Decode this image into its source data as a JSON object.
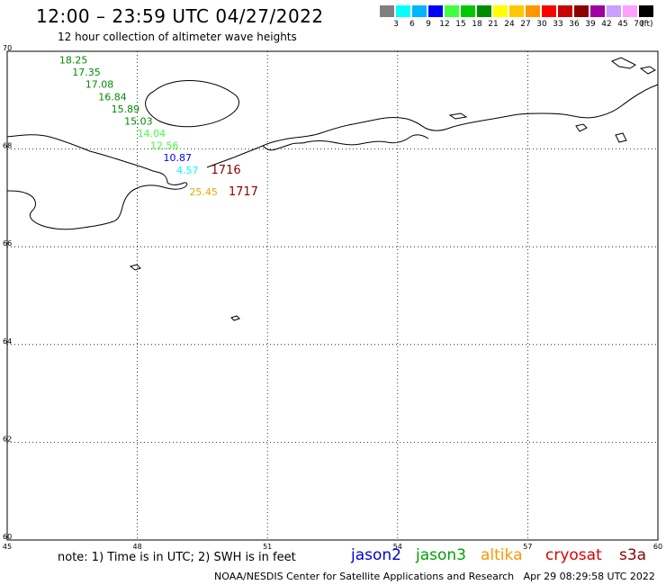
{
  "header": {
    "title": "12:00 – 23:59 UTC 04/27/2022",
    "subtitle": "12 hour collection of altimeter wave heights"
  },
  "colorbar": {
    "swatches": [
      "#808080",
      "#00ffff",
      "#00b4ff",
      "#0000ff",
      "#40ff40",
      "#00c800",
      "#008c00",
      "#ffff00",
      "#ffc800",
      "#ff9600",
      "#ff0000",
      "#c80000",
      "#8c0000",
      "#a000a0",
      "#c8a0ff",
      "#ffa0ff",
      "#000000"
    ],
    "labels": [
      "3",
      "6",
      "9",
      "12",
      "15",
      "18",
      "21",
      "24",
      "27",
      "30",
      "33",
      "36",
      "39",
      "42",
      "45",
      "70"
    ],
    "unit": "(ft)"
  },
  "map": {
    "lat_labels": [
      "70",
      "68",
      "66",
      "64",
      "62",
      "60"
    ],
    "lon_labels": [
      "45",
      "48",
      "51",
      "54",
      "57",
      "60"
    ],
    "points": [
      {
        "lon": 46.2,
        "lat": 69.75,
        "text": "18.25",
        "color": "#008c00"
      },
      {
        "lon": 46.5,
        "lat": 69.5,
        "text": "17.35",
        "color": "#008c00"
      },
      {
        "lon": 46.8,
        "lat": 69.25,
        "text": "17.08",
        "color": "#008c00"
      },
      {
        "lon": 47.1,
        "lat": 69.0,
        "text": "16.84",
        "color": "#008c00"
      },
      {
        "lon": 47.4,
        "lat": 68.75,
        "text": "15.89",
        "color": "#008c00"
      },
      {
        "lon": 47.7,
        "lat": 68.5,
        "text": "15.03",
        "color": "#008c00"
      },
      {
        "lon": 48.0,
        "lat": 68.25,
        "text": "14.04",
        "color": "#40ff40"
      },
      {
        "lon": 48.3,
        "lat": 68.0,
        "text": "12.56",
        "color": "#40ff40"
      },
      {
        "lon": 48.6,
        "lat": 67.75,
        "text": "10.87",
        "color": "#0000ff"
      },
      {
        "lon": 48.9,
        "lat": 67.5,
        "text": "4.57",
        "color": "#00ffff"
      },
      {
        "lon": 49.2,
        "lat": 67.05,
        "text": "25.45",
        "color": "#e6a800"
      }
    ],
    "times": [
      {
        "lon": 49.7,
        "lat": 67.5,
        "text": "1716",
        "color": "#8c0000"
      },
      {
        "lon": 50.1,
        "lat": 67.05,
        "text": "1717",
        "color": "#8c0000"
      }
    ]
  },
  "footer": {
    "note": "note: 1) Time is in UTC; 2) SWH is in feet",
    "satellites": [
      {
        "name": "jason2",
        "color": "#0000dc"
      },
      {
        "name": "jason3",
        "color": "#00a000"
      },
      {
        "name": "altika",
        "color": "#ff9600"
      },
      {
        "name": "cryosat",
        "color": "#dc0000"
      },
      {
        "name": "s3a",
        "color": "#8c0000"
      }
    ],
    "credit": "NOAA/NESDIS Center for Satellite Applications and Research",
    "timestamp": "Apr 29 08:29:58 UTC 2022"
  }
}
